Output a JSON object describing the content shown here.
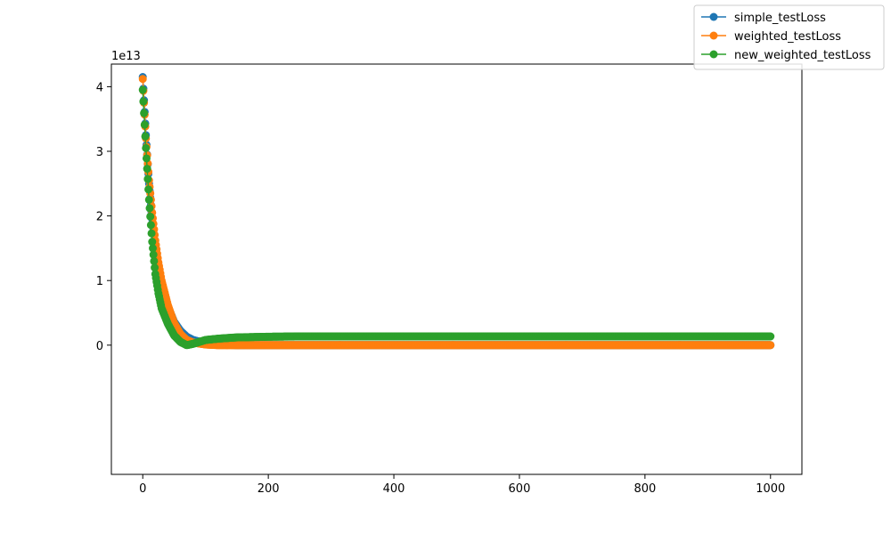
{
  "chart_data": {
    "type": "line",
    "title": "",
    "xlabel": "",
    "ylabel": "",
    "y_multiplier_label": "1e13",
    "xlim": [
      -50,
      1050
    ],
    "ylim": [
      -2.0,
      4.35
    ],
    "x_ticks": [
      0,
      200,
      400,
      600,
      800,
      1000
    ],
    "x_tick_labels": [
      "0",
      "200",
      "400",
      "600",
      "800",
      "1000"
    ],
    "y_ticks": [
      0,
      1,
      2,
      3,
      4
    ],
    "y_tick_labels": [
      "0",
      "1",
      "2",
      "3",
      "4"
    ],
    "grid": false,
    "legend_position": "top-right",
    "marker": "circle",
    "x_range": [
      0,
      1000
    ],
    "series": [
      {
        "name": "simple_testLoss",
        "color": "#1f77b4",
        "keypoints": [
          [
            0,
            4.15
          ],
          [
            5,
            3.25
          ],
          [
            10,
            2.5
          ],
          [
            15,
            1.95
          ],
          [
            20,
            1.55
          ],
          [
            25,
            1.2
          ],
          [
            30,
            0.95
          ],
          [
            40,
            0.6
          ],
          [
            50,
            0.36
          ],
          [
            60,
            0.22
          ],
          [
            70,
            0.13
          ],
          [
            80,
            0.08
          ],
          [
            100,
            0.03
          ],
          [
            120,
            0.01
          ],
          [
            150,
            0.0
          ],
          [
            1000,
            0.0
          ]
        ]
      },
      {
        "name": "weighted_testLoss",
        "color": "#ff7f0e",
        "keypoints": [
          [
            0,
            4.12
          ],
          [
            5,
            3.2
          ],
          [
            10,
            2.55
          ],
          [
            15,
            2.05
          ],
          [
            20,
            1.62
          ],
          [
            25,
            1.28
          ],
          [
            30,
            1.0
          ],
          [
            40,
            0.62
          ],
          [
            50,
            0.34
          ],
          [
            60,
            0.17
          ],
          [
            70,
            0.08
          ],
          [
            80,
            0.04
          ],
          [
            100,
            0.01
          ],
          [
            120,
            0.0
          ],
          [
            1000,
            0.0
          ]
        ]
      },
      {
        "name": "new_weighted_testLoss",
        "color": "#2ca02c",
        "keypoints": [
          [
            0,
            3.95
          ],
          [
            5,
            3.05
          ],
          [
            10,
            2.25
          ],
          [
            15,
            1.6
          ],
          [
            20,
            1.1
          ],
          [
            25,
            0.8
          ],
          [
            30,
            0.57
          ],
          [
            40,
            0.33
          ],
          [
            50,
            0.15
          ],
          [
            60,
            0.05
          ],
          [
            70,
            0.0
          ],
          [
            80,
            0.02
          ],
          [
            90,
            0.05
          ],
          [
            100,
            0.08
          ],
          [
            120,
            0.1
          ],
          [
            150,
            0.12
          ],
          [
            200,
            0.13
          ],
          [
            250,
            0.135
          ],
          [
            1000,
            0.135
          ]
        ]
      }
    ]
  }
}
